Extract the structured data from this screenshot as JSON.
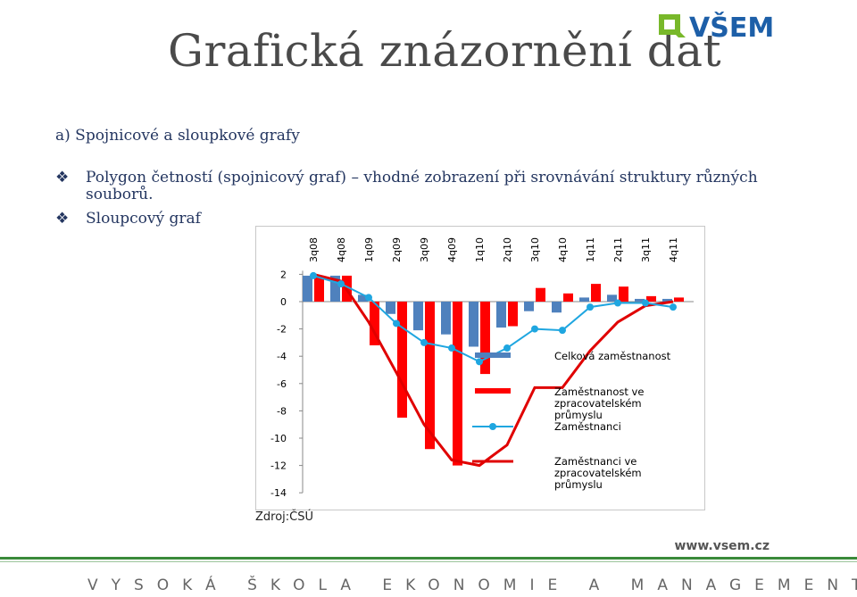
{
  "slide": {
    "title": "Grafická znázornění dat",
    "subtitle": "a) Spojnicové a sloupkové grafy",
    "bullets": [
      {
        "line1": "Polygon četností (spojnicový graf) – vhodné zobrazení při srovnávání struktury různých",
        "line2": "souborů."
      },
      {
        "line1": "Sloupcový graf"
      }
    ],
    "source": "Zdroj:ČSÚ",
    "footer_url": "www.vsem.cz",
    "footer_text": "VYSOKÁ ŠKOLA EKONOMIE A MANAGEMENTU",
    "logo_text": "VŠEM"
  },
  "colors": {
    "title": "#4a4a4a",
    "text": "#243660",
    "logo_green": "#78b82a",
    "logo_blue": "#1d5fa8",
    "bar_total": "#4f81bd",
    "bar_manufacturing": "#ff0000",
    "line_employees": "#1fa6e0",
    "line_manufacturing": "#e00000"
  },
  "chart_data": {
    "type": "bar",
    "categories": [
      "3q08",
      "4q08",
      "1q09",
      "2q09",
      "3q09",
      "4q09",
      "1q10",
      "2q10",
      "3q10",
      "4q10",
      "1q11",
      "2q11",
      "3q11",
      "4q11"
    ],
    "ylim": [
      -14,
      2
    ],
    "yticks": [
      "2",
      "0",
      "-2",
      "-4",
      "-6",
      "-8",
      "-10",
      "-12",
      "-14"
    ],
    "legend_position": "right",
    "series": [
      {
        "name": "Celková zaměstnanost",
        "type": "bar",
        "values": [
          1.9,
          1.9,
          0.5,
          -0.9,
          -2.1,
          -2.4,
          -3.3,
          -1.9,
          -0.7,
          -0.8,
          0.3,
          0.5,
          0.2,
          0.2
        ]
      },
      {
        "name": "Zaměstnanost ve zpracovatelském průmyslu",
        "type": "bar",
        "values": [
          1.9,
          1.9,
          -3.2,
          -8.5,
          -10.8,
          -12.0,
          -5.3,
          -1.8,
          1.0,
          0.6,
          1.3,
          1.1,
          0.4,
          0.3
        ]
      },
      {
        "name": "Zaměstnanci",
        "type": "line",
        "values": [
          1.9,
          1.3,
          0.3,
          -1.6,
          -3.0,
          -3.4,
          -4.4,
          -3.4,
          -2.0,
          -2.1,
          -0.4,
          -0.1,
          -0.1,
          -0.4
        ]
      },
      {
        "name": "Zaměstnanci ve zpracovatelském průmyslu",
        "type": "line",
        "values": [
          2.0,
          1.5,
          -1.5,
          -5.2,
          -9.0,
          -11.6,
          -12.0,
          -10.5,
          -6.3,
          -6.3,
          -3.6,
          -1.5,
          -0.3,
          0.0
        ]
      }
    ]
  }
}
